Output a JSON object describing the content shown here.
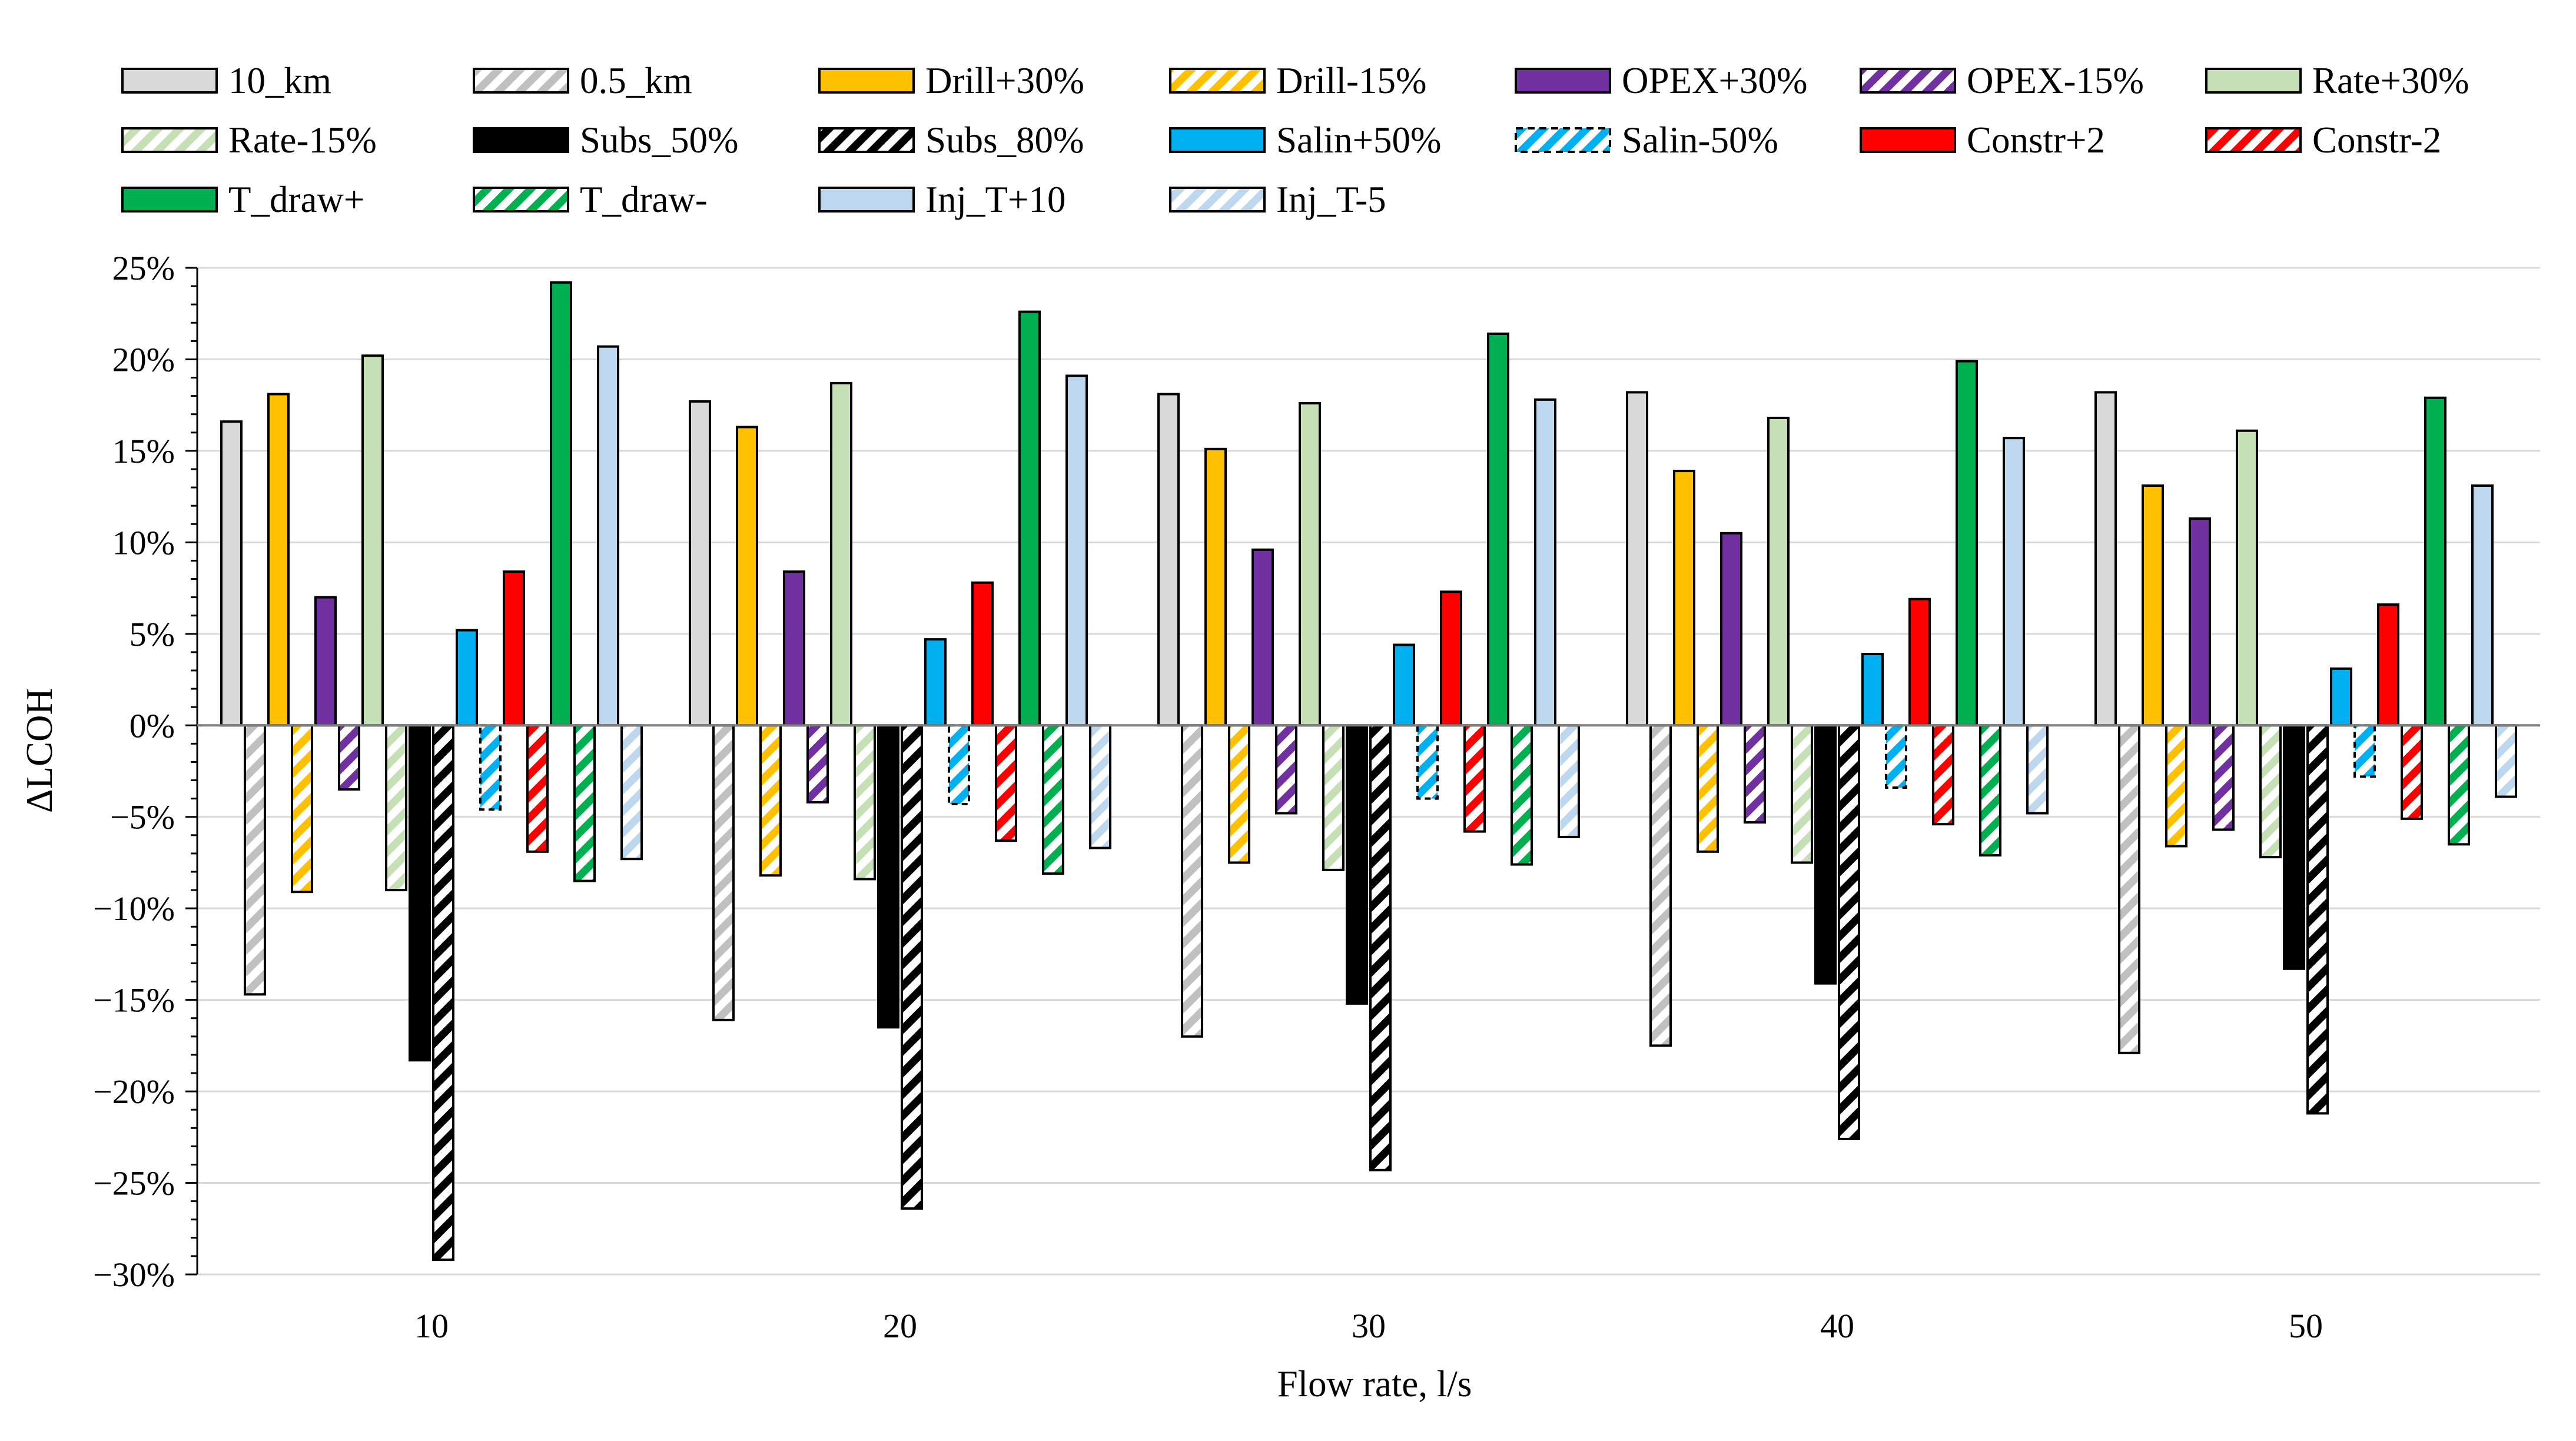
{
  "chart_data": {
    "type": "bar",
    "xlabel": "Flow rate, l/s",
    "ylabel": "ΔLCOH",
    "ylim": [
      -30,
      25
    ],
    "ytick_step": 5,
    "y_ticks": [
      25,
      20,
      15,
      10,
      5,
      0,
      -5,
      -10,
      -15,
      -20,
      -25,
      -30
    ],
    "y_tick_labels": [
      "25%",
      "20%",
      "15%",
      "10%",
      "5%",
      "0%",
      "−5%",
      "−10%",
      "−15%",
      "−20%",
      "−25%",
      "−30%"
    ],
    "gridlines": true,
    "legend_position": "top",
    "categories": [
      "10",
      "20",
      "30",
      "40",
      "50"
    ],
    "series": [
      {
        "name": "10_km",
        "color": "#d9d9d9",
        "pattern": false,
        "values": [
          16.6,
          17.7,
          18.1,
          18.2,
          18.2
        ]
      },
      {
        "name": "0.5_km",
        "color": "#c0c0c0",
        "pattern": true,
        "values": [
          -14.7,
          -16.1,
          -17.0,
          -17.5,
          -17.9
        ]
      },
      {
        "name": "Drill+30%",
        "color": "#ffc000",
        "pattern": false,
        "values": [
          18.1,
          16.3,
          15.1,
          13.9,
          13.1
        ]
      },
      {
        "name": "Drill-15%",
        "color": "#ffc000",
        "pattern": true,
        "values": [
          -9.1,
          -8.2,
          -7.5,
          -6.9,
          -6.6
        ]
      },
      {
        "name": "OPEX+30%",
        "color": "#7030a0",
        "pattern": false,
        "values": [
          7.0,
          8.4,
          9.6,
          10.5,
          11.3
        ]
      },
      {
        "name": "OPEX-15%",
        "color": "#7030a0",
        "pattern": true,
        "values": [
          -3.5,
          -4.2,
          -4.8,
          -5.3,
          -5.7
        ]
      },
      {
        "name": "Rate+30%",
        "color": "#c5e0b4",
        "pattern": false,
        "values": [
          20.2,
          18.7,
          17.6,
          16.8,
          16.1
        ]
      },
      {
        "name": "Rate-15%",
        "color": "#c5e0b4",
        "pattern": true,
        "values": [
          -9.0,
          -8.4,
          -7.9,
          -7.5,
          -7.2
        ]
      },
      {
        "name": "Subs_50%",
        "color": "#000000",
        "pattern": false,
        "values": [
          -18.3,
          -16.5,
          -15.2,
          -14.1,
          -13.3
        ]
      },
      {
        "name": "Subs_80%",
        "color": "#000000",
        "pattern": true,
        "values": [
          -29.2,
          -26.4,
          -24.3,
          -22.6,
          -21.2
        ]
      },
      {
        "name": "Salin+50%",
        "color": "#00b0f0",
        "pattern": false,
        "values": [
          5.2,
          4.7,
          4.4,
          3.9,
          3.1
        ]
      },
      {
        "name": "Salin-50%",
        "color": "#00b0f0",
        "pattern": true,
        "dashed": true,
        "values": [
          -4.6,
          -4.3,
          -4.0,
          -3.4,
          -2.8
        ]
      },
      {
        "name": "Constr+2",
        "color": "#ff0000",
        "pattern": false,
        "values": [
          8.4,
          7.8,
          7.3,
          6.9,
          6.6
        ]
      },
      {
        "name": "Constr-2",
        "color": "#ff0000",
        "pattern": true,
        "values": [
          -6.9,
          -6.3,
          -5.8,
          -5.4,
          -5.1
        ]
      },
      {
        "name": "T_draw+",
        "color": "#00b050",
        "pattern": false,
        "values": [
          24.2,
          22.6,
          21.4,
          19.9,
          17.9
        ]
      },
      {
        "name": "T_draw-",
        "color": "#00b050",
        "pattern": true,
        "values": [
          -8.5,
          -8.1,
          -7.6,
          -7.1,
          -6.5
        ]
      },
      {
        "name": "Inj_T+10",
        "color": "#bdd7ee",
        "pattern": false,
        "values": [
          20.7,
          19.1,
          17.8,
          15.7,
          13.1
        ]
      },
      {
        "name": "Inj_T-5",
        "color": "#bdd7ee",
        "pattern": true,
        "values": [
          -7.3,
          -6.7,
          -6.1,
          -4.8,
          -3.9
        ]
      }
    ]
  }
}
